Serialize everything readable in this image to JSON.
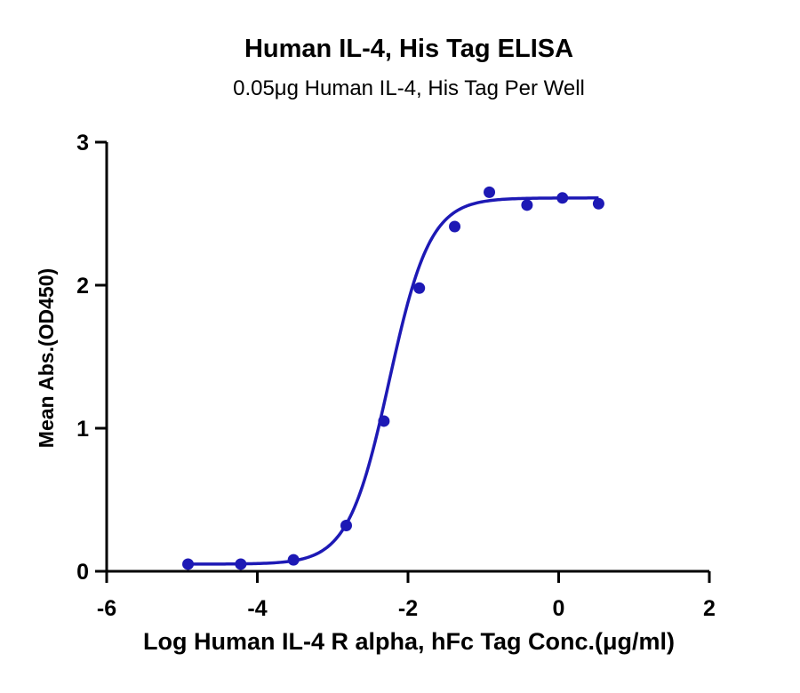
{
  "chart_data": {
    "type": "scatter",
    "title": "Human IL-4, His Tag ELISA",
    "subtitle": "0.05μg Human IL-4, His Tag Per Well",
    "xlabel": "Log Human IL-4 R alpha, hFc Tag Conc.(μg/ml)",
    "ylabel": "Mean Abs.(OD450)",
    "xlim": [
      -6,
      2
    ],
    "ylim": [
      0,
      3
    ],
    "xticks": [
      -6,
      -4,
      -2,
      0,
      2
    ],
    "yticks": [
      0,
      1,
      2,
      3
    ],
    "grid": false,
    "series": [
      {
        "values": [
          {
            "x": -4.92,
            "y": 0.05
          },
          {
            "x": -4.22,
            "y": 0.05
          },
          {
            "x": -3.52,
            "y": 0.08
          },
          {
            "x": -2.82,
            "y": 0.32
          },
          {
            "x": -2.32,
            "y": 1.05
          },
          {
            "x": -1.85,
            "y": 1.98
          },
          {
            "x": -1.38,
            "y": 2.41
          },
          {
            "x": -0.92,
            "y": 2.65
          },
          {
            "x": -0.42,
            "y": 2.56
          },
          {
            "x": 0.05,
            "y": 2.61
          },
          {
            "x": 0.53,
            "y": 2.57
          }
        ],
        "fit": {
          "model": "4PL",
          "bottom": 0.05,
          "top": 2.61,
          "logEC50": -2.25,
          "hill": 1.6,
          "range": [
            -4.92,
            0.53
          ]
        }
      }
    ],
    "colors": {
      "series": "#1d19b5",
      "axis": "#000000"
    }
  }
}
